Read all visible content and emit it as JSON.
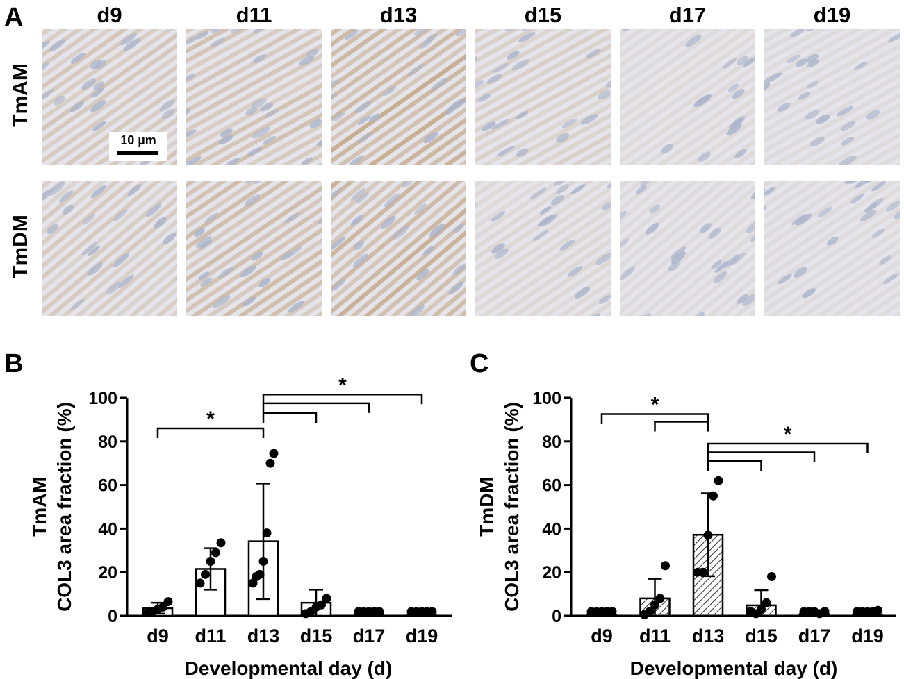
{
  "panel_labels": {
    "a": "A",
    "b": "B",
    "c": "C"
  },
  "days": [
    "d9",
    "d11",
    "d13",
    "d15",
    "d17",
    "d19"
  ],
  "rows": [
    "TmAM",
    "TmDM"
  ],
  "scale_bar": "10 µm",
  "stain_intensity": {
    "TmAM": [
      0.45,
      0.55,
      0.85,
      0.25,
      0.05,
      0.03
    ],
    "TmDM": [
      0.35,
      0.6,
      0.8,
      0.1,
      0.04,
      0.02
    ]
  },
  "colors": {
    "background": "#e4e4ea",
    "nuclei": "#aab4cc",
    "stain": "#b58a55"
  },
  "significance": "*",
  "chart_data": [
    {
      "type": "bar",
      "panel": "B",
      "categories": [
        "d9",
        "d11",
        "d13",
        "d15",
        "d17",
        "d19"
      ],
      "values": [
        3.5,
        21.5,
        34.2,
        6.0,
        0.3,
        0.2
      ],
      "sd": [
        2.5,
        9.5,
        26.5,
        6.0,
        0.3,
        0.3
      ],
      "points": [
        [
          1.5,
          2,
          3,
          4,
          6.5
        ],
        [
          15,
          19,
          25,
          29,
          33.5
        ],
        [
          15,
          18,
          19,
          25,
          38,
          70,
          74.5
        ],
        [
          1,
          2,
          4,
          5,
          8
        ],
        [
          0,
          0,
          0,
          0,
          0
        ],
        [
          0,
          0,
          0,
          0,
          0
        ]
      ],
      "pattern": "solid",
      "ylabel_top": "TmAM",
      "ylabel": "COL3 area fraction (%)",
      "xlabel": "Developmental day (d)",
      "ylim": [
        0,
        100
      ],
      "yticks": [
        0,
        20,
        40,
        60,
        80,
        100
      ],
      "brackets": [
        {
          "from": "d9",
          "to": "d13",
          "level": 86,
          "star": true
        },
        {
          "from": "d13",
          "to": "d19",
          "level": 101.5,
          "star": true
        },
        {
          "from": "d13",
          "to": "d17",
          "level": 97.5,
          "star": false
        },
        {
          "from": "d13",
          "to": "d15",
          "level": 93,
          "star": false
        }
      ]
    },
    {
      "type": "bar",
      "panel": "C",
      "categories": [
        "d9",
        "d11",
        "d13",
        "d15",
        "d17",
        "d19"
      ],
      "values": [
        0.6,
        8.0,
        37.2,
        4.8,
        0.8,
        0.6
      ],
      "sd": [
        1.0,
        9.0,
        19.0,
        7.0,
        1.0,
        1.3
      ],
      "points": [
        [
          0,
          0,
          0,
          0,
          2
        ],
        [
          0.5,
          2,
          5,
          8,
          23
        ],
        [
          20,
          20,
          37,
          55,
          62
        ],
        [
          0,
          1,
          3,
          6,
          18
        ],
        [
          0,
          0,
          0,
          1,
          2
        ],
        [
          0,
          0,
          0,
          0,
          2.5
        ]
      ],
      "pattern": "hatched",
      "ylabel_top": "TmDM",
      "ylabel": "COL3 area fraction (%)",
      "xlabel": "Developmental day (d)",
      "ylim": [
        0,
        100
      ],
      "yticks": [
        0,
        20,
        40,
        60,
        80,
        100
      ],
      "brackets": [
        {
          "from": "d9",
          "to": "d13",
          "level": 92.5,
          "star": true
        },
        {
          "from": "d11",
          "to": "d13",
          "level": 89,
          "star": false
        },
        {
          "from": "d13",
          "to": "d19",
          "level": 79,
          "star": true
        },
        {
          "from": "d13",
          "to": "d17",
          "level": 75,
          "star": false
        },
        {
          "from": "d13",
          "to": "d15",
          "level": 71,
          "star": false
        }
      ]
    }
  ]
}
